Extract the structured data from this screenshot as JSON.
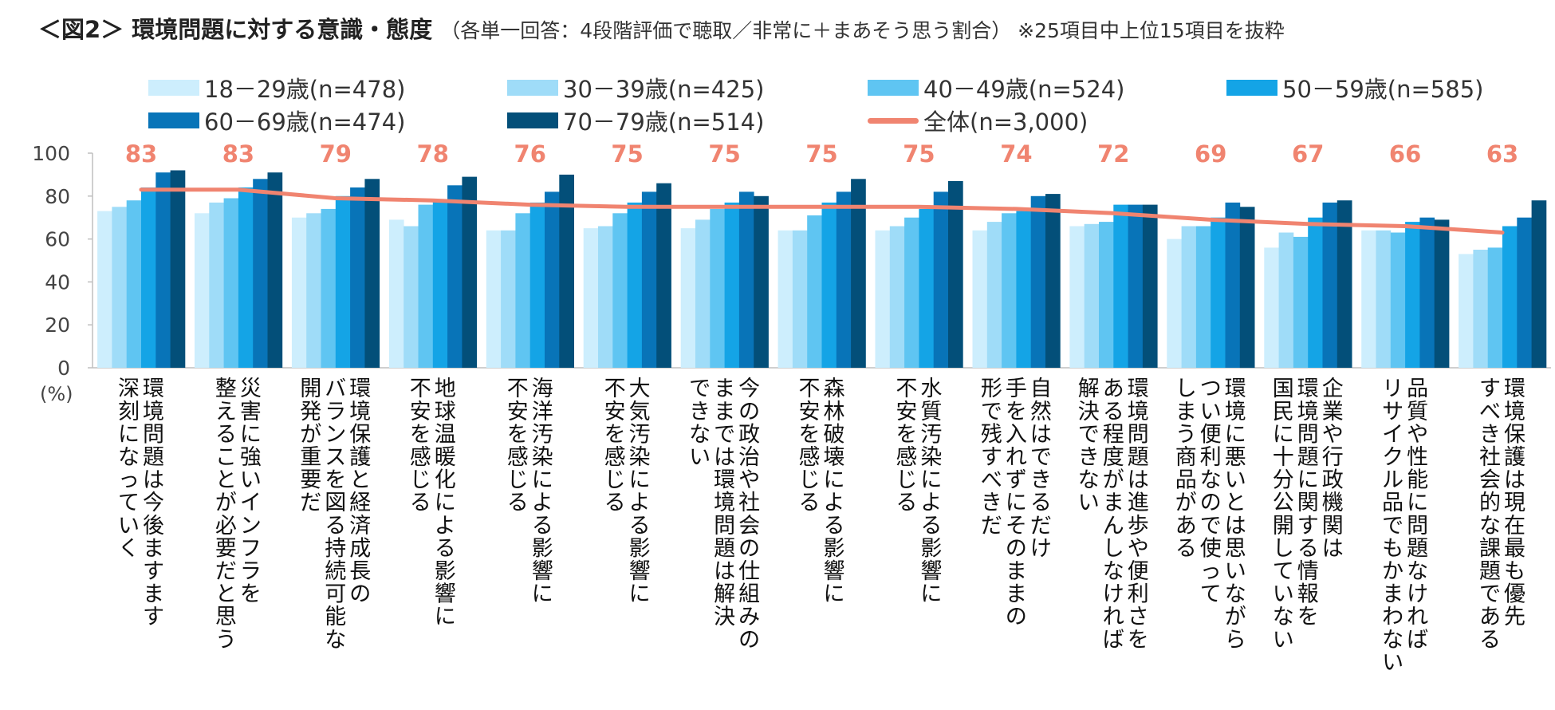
{
  "title": "＜図2＞ 環境問題に対する意識・態度",
  "subtitle": "（各単一回答：4段階評価で聴取／非常に＋まあそう思う割合） ※25項目中上位15項目を抜粋",
  "chart_data": {
    "type": "bar",
    "ylim": [
      0,
      100
    ],
    "yticks": [
      "0",
      "20",
      "40",
      "60",
      "80",
      "100"
    ],
    "ylabel": "(%)",
    "categories": [
      "環境問題は今後ますます深刻になっていく",
      "災害に強いインフラを整えることが必要だと思う",
      "環境保護と経済成長のバランスを図る持続可能な開発が重要だ",
      "地球温暖化による影響に不安を感じる",
      "海洋汚染による影響に不安を感じる",
      "大気汚染による影響に不安を感じる",
      "今の政治や社会の仕組みのままでは環境問題は解決できない",
      "森林破壊による影響に不安を感じる",
      "水質汚染による影響に不安を感じる",
      "自然はできるだけ手を入れずにそのままの形で残すべきだ",
      "環境問題は進歩や便利さをある程度がまんしなければ解決できない",
      "環境に悪いとは思いながらつい便利なので使ってしまう商品がある",
      "企業や行政機関は環境問題に関する情報を国民に十分公開していない",
      "品質や性能に問題なければリサイクル品でもかまわない",
      "環境保護は現在最も優先すべき社会的な課題である"
    ],
    "category_lines": [
      [
        "環境問題は今後ますます",
        "深刻になっていく"
      ],
      [
        "災害に強いインフラを",
        "整えることが必要だと思う"
      ],
      [
        "環境保護と経済成長の",
        "バランスを図る持続可能な",
        "開発が重要だ"
      ],
      [
        "地球温暖化による影響に",
        "不安を感じる"
      ],
      [
        "海洋汚染による影響に",
        "不安を感じる"
      ],
      [
        "大気汚染による影響に",
        "不安を感じる"
      ],
      [
        "今の政治や社会の仕組みの",
        "ままでは環境問題は解決",
        "できない"
      ],
      [
        "森林破壊による影響に",
        "不安を感じる"
      ],
      [
        "水質汚染による影響に",
        "不安を感じる"
      ],
      [
        "自然はできるだけ",
        "手を入れずにそのままの",
        "形で残すべきだ"
      ],
      [
        "環境問題は進歩や便利さを",
        "ある程度がまんしなければ",
        "解決できない"
      ],
      [
        "環境に悪いとは思いながら",
        "つい便利なので使って",
        "しまう商品がある"
      ],
      [
        "企業や行政機関は",
        "環境問題に関する情報を",
        "国民に十分公開していない"
      ],
      [
        "品質や性能に問題なければ",
        "リサイクル品でもかまわない"
      ],
      [
        "環境保護は現在最も優先",
        "すべき社会的な課題である"
      ]
    ],
    "series": [
      {
        "name": "18－29歳(n=478)",
        "color": "#cdeefd",
        "values": [
          73,
          72,
          70,
          69,
          64,
          65,
          65,
          64,
          64,
          64,
          66,
          60,
          56,
          64,
          53
        ]
      },
      {
        "name": "30－39歳(n=425)",
        "color": "#9fdcf8",
        "values": [
          75,
          77,
          72,
          66,
          64,
          66,
          69,
          64,
          66,
          68,
          67,
          66,
          63,
          64,
          55
        ]
      },
      {
        "name": "40－49歳(n=524)",
        "color": "#5fc5f2",
        "values": [
          78,
          79,
          74,
          76,
          72,
          72,
          74,
          71,
          70,
          72,
          68,
          66,
          61,
          63,
          56
        ]
      },
      {
        "name": "50－59歳(n=585)",
        "color": "#14a4e6",
        "values": [
          84,
          84,
          80,
          78,
          77,
          77,
          77,
          77,
          74,
          73,
          76,
          70,
          70,
          68,
          66
        ]
      },
      {
        "name": "60－69歳(n=474)",
        "color": "#0874b8",
        "values": [
          91,
          88,
          84,
          85,
          82,
          82,
          82,
          82,
          82,
          80,
          76,
          77,
          77,
          70,
          70
        ]
      },
      {
        "name": "70－79歳(n=514)",
        "color": "#034f79",
        "values": [
          92,
          91,
          88,
          89,
          90,
          86,
          80,
          88,
          87,
          81,
          76,
          75,
          78,
          69,
          78
        ]
      }
    ],
    "total": {
      "name": "全体(n=3,000)",
      "color": "#f08470",
      "values": [
        83,
        83,
        79,
        78,
        76,
        75,
        75,
        75,
        75,
        74,
        72,
        69,
        67,
        66,
        63
      ]
    }
  }
}
